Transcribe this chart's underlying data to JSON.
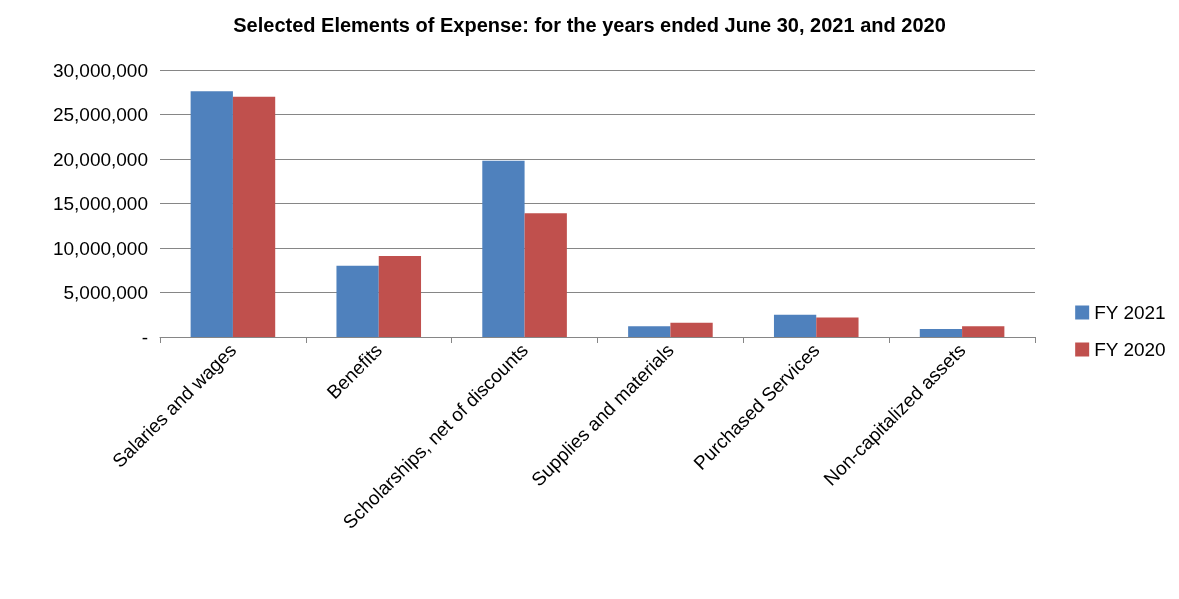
{
  "chart_data": {
    "type": "bar",
    "title": "Selected Elements of Expense: for the years ended June 30, 2021 and 2020",
    "categories": [
      "Salaries and wages",
      "Benefits",
      "Scholarships, net of discounts",
      "Supplies and materials",
      "Purchased Services",
      "Non-capitalized assets"
    ],
    "series": [
      {
        "name": "FY 2021",
        "color": "#4f81bd",
        "values": [
          27600000,
          8000000,
          19800000,
          1200000,
          2500000,
          900000
        ]
      },
      {
        "name": "FY 2020",
        "color": "#c0504d",
        "values": [
          27000000,
          9100000,
          13900000,
          1600000,
          2200000,
          1200000
        ]
      }
    ],
    "ylim": [
      0,
      30000000
    ],
    "yticks": [
      {
        "value": 0,
        "label": "-"
      },
      {
        "value": 5000000,
        "label": "5,000,000"
      },
      {
        "value": 10000000,
        "label": "10,000,000"
      },
      {
        "value": 15000000,
        "label": "15,000,000"
      },
      {
        "value": 20000000,
        "label": "20,000,000"
      },
      {
        "value": 25000000,
        "label": "25,000,000"
      },
      {
        "value": 30000000,
        "label": "30,000,000"
      }
    ],
    "grid": "y",
    "legend": "right"
  }
}
